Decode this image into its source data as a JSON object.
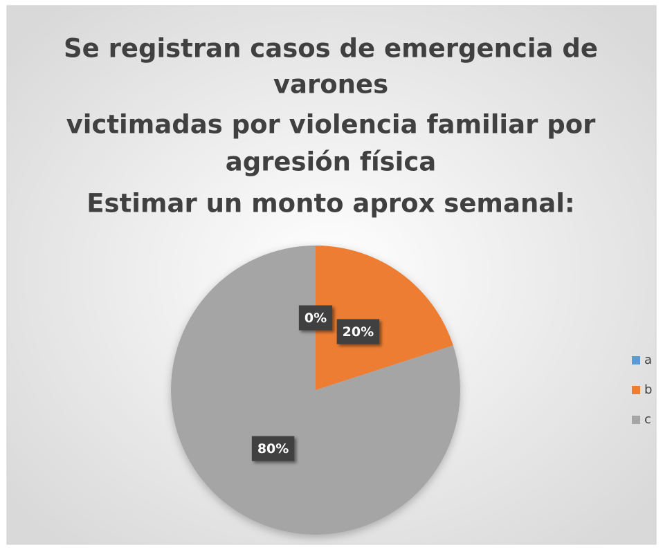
{
  "chart_data": {
    "type": "pie",
    "title": [
      "Se registran casos de emergencia de",
      "varones",
      "victimadas por violencia familiar  por",
      "agresión física",
      "Estimar un monto aprox semanal:"
    ],
    "categories": [
      "a",
      "b",
      "c"
    ],
    "values": [
      0,
      20,
      80
    ],
    "value_labels": [
      "0%",
      "20%",
      "80%"
    ],
    "colors": [
      "#5b9bd5",
      "#ed7d31",
      "#a5a5a5"
    ],
    "legend": "right"
  }
}
